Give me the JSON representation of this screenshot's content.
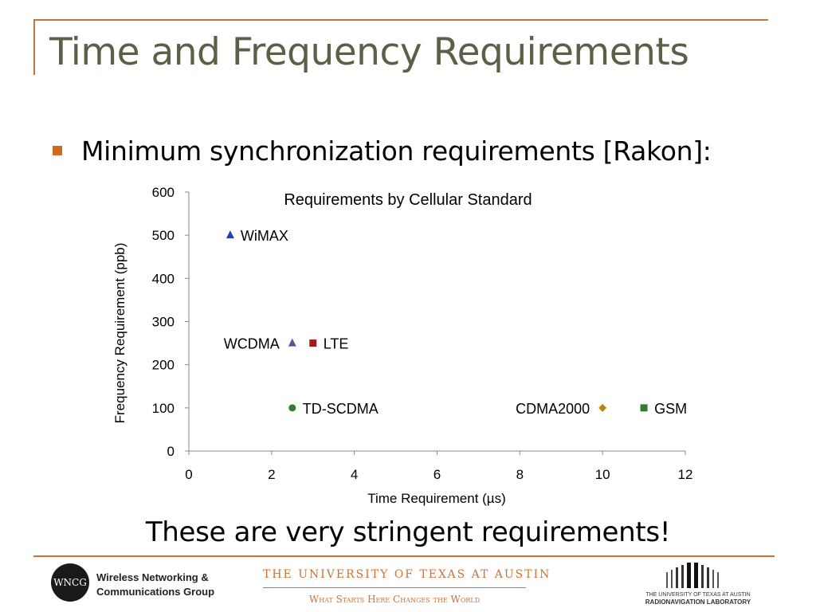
{
  "slide": {
    "title": "Time and Frequency Requirements",
    "bullet": "Minimum synchronization requirements [Rakon]:",
    "note": "These are very stringent requirements!"
  },
  "chart_data": {
    "type": "scatter",
    "title": "Requirements by Cellular Standard",
    "xlabel": "Time Requirement (µs)",
    "ylabel": "Frequency Requirement (ppb)",
    "xlim": [
      0,
      12
    ],
    "ylim": [
      0,
      600
    ],
    "xticks": [
      0,
      2,
      4,
      6,
      8,
      10,
      12
    ],
    "yticks": [
      0,
      100,
      200,
      300,
      400,
      500,
      600
    ],
    "grid": false,
    "series": [
      {
        "name": "WiMAX",
        "x": 1,
        "y": 500,
        "marker": "triangle",
        "color": "#1f3fbf",
        "label_side": "right"
      },
      {
        "name": "WCDMA",
        "x": 2.5,
        "y": 250,
        "marker": "triangle",
        "color": "#6a4a9a",
        "label_side": "left"
      },
      {
        "name": "LTE",
        "x": 3,
        "y": 250,
        "marker": "square",
        "color": "#9e1c1c",
        "label_side": "right"
      },
      {
        "name": "TD-SCDMA",
        "x": 2.5,
        "y": 100,
        "marker": "circle",
        "color": "#2e7d32",
        "label_side": "right"
      },
      {
        "name": "CDMA2000",
        "x": 10,
        "y": 100,
        "marker": "diamond",
        "color": "#b8860b",
        "label_side": "left"
      },
      {
        "name": "GSM",
        "x": 11,
        "y": 100,
        "marker": "square",
        "color": "#2e7d32",
        "label_side": "right"
      }
    ]
  },
  "footer": {
    "wncg_logo": "WNCG",
    "wncg_line1": "Wireless Networking &",
    "wncg_line2": "Communications Group",
    "ut_line1": "THE UNIVERSITY OF TEXAS AT AUSTIN",
    "ut_line2": "What Starts Here Changes the World",
    "rnl_line1": "THE UNIVERSITY OF TEXAS AT AUSTIN",
    "rnl_line2": "RADIONAVIGATION LABORATORY"
  }
}
